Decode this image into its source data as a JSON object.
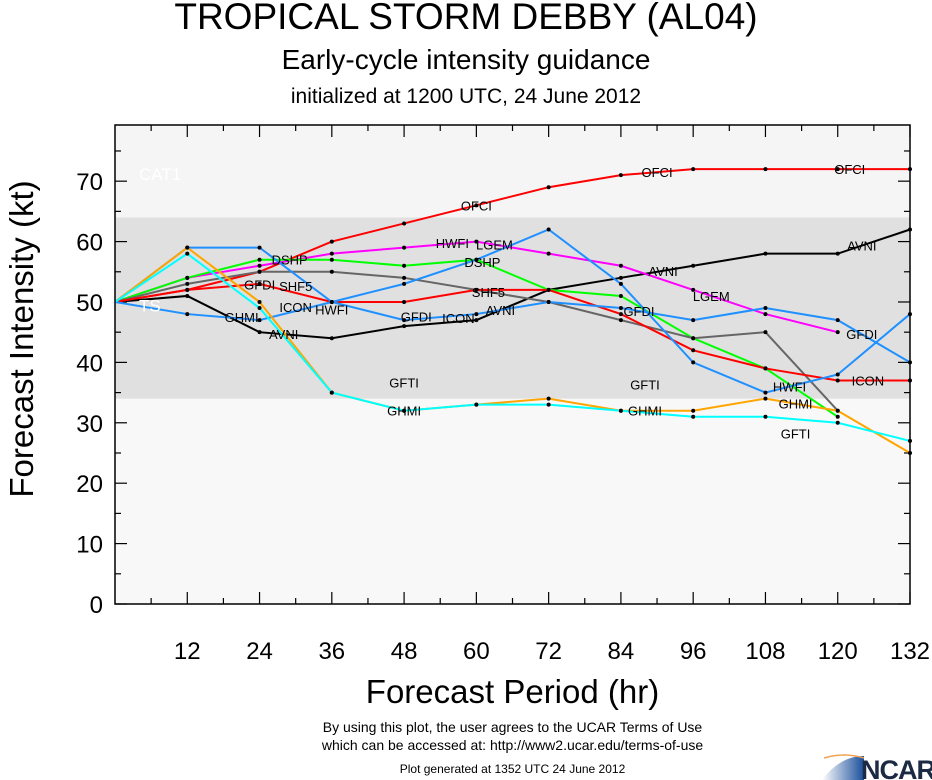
{
  "header": {
    "title": "TROPICAL STORM DEBBY (AL04)",
    "subtitle": "Early-cycle intensity guidance",
    "init": "initialized at 1200 UTC, 24 June 2012"
  },
  "footer": {
    "terms1": "By using this plot, the user agrees to the UCAR Terms of Use",
    "terms2": "which can be accessed at: http://www2.ucar.edu/terms-of-use",
    "generated": "Plot generated at 1352 UTC   24 June 2012",
    "logo": "NCAR"
  },
  "chart_data": {
    "type": "line",
    "xlabel": "Forecast Period (hr)",
    "ylabel": "Forecast Intensity (kt)",
    "xlim": [
      0,
      132
    ],
    "ylim": [
      0,
      79
    ],
    "xticks": [
      12,
      24,
      36,
      48,
      60,
      72,
      84,
      96,
      108,
      120,
      132
    ],
    "yticks": [
      0,
      10,
      20,
      30,
      40,
      50,
      60,
      70
    ],
    "bands": [
      {
        "label": "TS",
        "from": 34,
        "to": 64,
        "color": "#e0e0e0"
      },
      {
        "label": "CAT1",
        "from": 64,
        "to": 79,
        "color": "#f5f5f5"
      }
    ],
    "x": [
      0,
      12,
      24,
      36,
      48,
      60,
      72,
      84,
      96,
      108,
      120,
      132
    ],
    "series": [
      {
        "name": "OFCI",
        "color": "#ff0000",
        "values": [
          50,
          52,
          55,
          60,
          63,
          66,
          69,
          71,
          72,
          72,
          72,
          72
        ],
        "label_at": [
          60,
          90,
          122
        ]
      },
      {
        "name": "AVNI",
        "color": "#000000",
        "values": [
          50,
          51,
          45,
          44,
          46,
          47,
          52,
          54,
          56,
          58,
          58,
          62
        ],
        "label_at": [
          28,
          64,
          91,
          124
        ]
      },
      {
        "name": "LGEM",
        "color": "#ff00ff",
        "values": [
          50,
          54,
          56,
          58,
          59,
          60,
          58,
          56,
          52,
          48,
          45,
          null
        ],
        "label_at": [
          63,
          99
        ]
      },
      {
        "name": "DSHP",
        "color": "#00ff00",
        "values": [
          50,
          54,
          57,
          57,
          56,
          57,
          52,
          51,
          44,
          39,
          31,
          null
        ],
        "label_at": [
          29,
          61
        ]
      },
      {
        "name": "SHF5",
        "color": "#666666",
        "values": [
          50,
          53,
          55,
          55,
          54,
          52,
          50,
          47,
          44,
          45,
          32,
          null
        ],
        "label_at": [
          30,
          62
        ]
      },
      {
        "name": "ICON",
        "color": "#ff0000",
        "values": [
          50,
          52,
          53,
          50,
          50,
          52,
          52,
          48,
          42,
          39,
          37,
          37
        ],
        "label_at": [
          30,
          62,
          125
        ]
      },
      {
        "name": "HWFI",
        "color": "#1e90ff",
        "values": [
          50,
          48,
          47,
          50,
          53,
          57,
          62,
          53,
          40,
          35,
          38,
          48
        ],
        "label_at": [
          31,
          61,
          112
        ]
      },
      {
        "name": "GFDI",
        "color": "#1e90ff",
        "values": [
          50,
          59,
          59,
          50,
          47,
          48,
          50,
          49,
          47,
          49,
          47,
          40
        ],
        "label_at": [
          29,
          55,
          87,
          124
        ]
      },
      {
        "name": "GHMI",
        "color": "#ffa500",
        "values": [
          50,
          59,
          50,
          35,
          32,
          33,
          34,
          32,
          32,
          34,
          32,
          25
        ],
        "label_at": [
          26,
          48,
          88,
          113
        ]
      },
      {
        "name": "GFTI",
        "color": "#00ffff",
        "values": [
          50,
          58,
          49,
          35,
          32,
          33,
          33,
          32,
          31,
          31,
          30,
          27
        ],
        "label_at": [
          48,
          88,
          113
        ]
      }
    ]
  }
}
